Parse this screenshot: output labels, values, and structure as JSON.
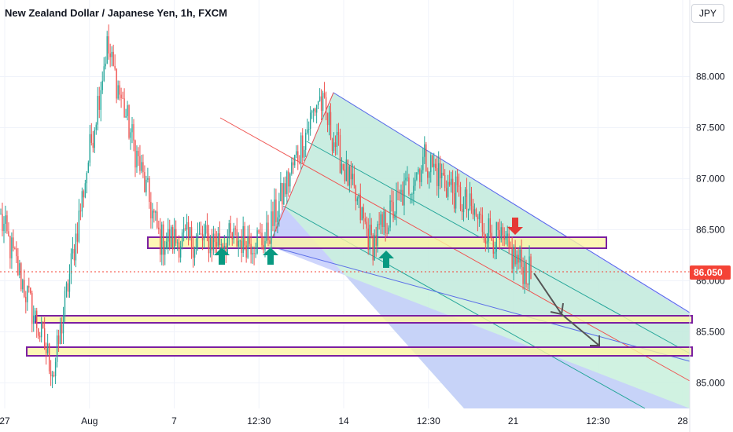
{
  "header": {
    "title": "New Zealand Dollar / Japanese Yen, 1h, FXCM"
  },
  "currency_button": {
    "label": "JPY"
  },
  "colors": {
    "up": "#26a69a",
    "down": "#ef5350",
    "zone_fill": "#fcf4a3",
    "zone_border": "#7b1fa2",
    "channel_fill_outer": "#c5cefb",
    "channel_fill_inner": "#c8f0dc",
    "price_line": "#f44336",
    "arrow_up": "#089981",
    "arrow_down": "#e53935"
  },
  "chart_data": {
    "type": "candlestick",
    "title": "New Zealand Dollar / Japanese Yen, 1h, FXCM",
    "ylim": [
      84.75,
      88.75
    ],
    "y_ticks": [
      "85.000",
      "85.500",
      "86.000",
      "86.500",
      "87.000",
      "87.500",
      "88.000"
    ],
    "x_ticks": [
      "27",
      "Aug",
      "7",
      "12:30",
      "14",
      "12:30",
      "21",
      "12:30",
      "28"
    ],
    "current_price": "86.050",
    "key_points": [
      {
        "x": "27",
        "price": 86.6
      },
      {
        "x": "Jul 30",
        "price": 85.1
      },
      {
        "x": "Aug 1",
        "price": 88.3
      },
      {
        "x": "Aug 3",
        "price": 86.4
      },
      {
        "x": "Aug 7",
        "price": 86.4
      },
      {
        "x": "Aug 9",
        "price": 86.4
      },
      {
        "x": "Aug 11",
        "price": 87.8
      },
      {
        "x": "Aug 14",
        "price": 86.35
      },
      {
        "x": "Aug 16",
        "price": 87.2
      },
      {
        "x": "Aug 19",
        "price": 86.6
      },
      {
        "x": "Aug 20",
        "price": 86.05
      }
    ],
    "zones": [
      {
        "low": 86.35,
        "high": 86.45
      },
      {
        "low": 85.55,
        "high": 85.63
      },
      {
        "low": 85.23,
        "high": 85.31
      }
    ]
  }
}
